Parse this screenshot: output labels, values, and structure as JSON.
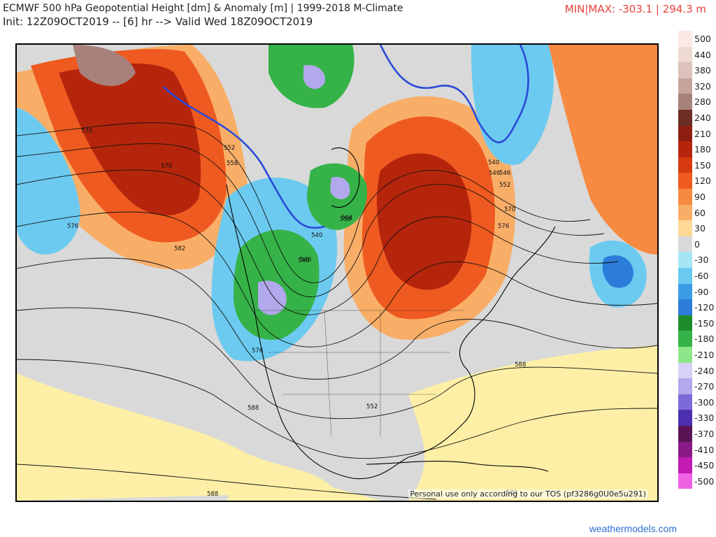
{
  "header": {
    "title": "ECMWF 500 hPa Geopotential Height [dm] & Anomaly [m] | 1999-2018 M-Climate",
    "subtitle": "Init: 12Z09OCT2019 -- [6] hr --> Valid Wed 18Z09OCT2019",
    "minmax": "MIN|MAX: -303.1 | 294.3 m"
  },
  "map": {
    "tos": "Personal use only according to our TOS (pf3286g0U0e5u291)",
    "contour_labels": [
      "570",
      "570",
      "576",
      "552",
      "558",
      "582",
      "552",
      "546",
      "540",
      "546",
      "546",
      "552",
      "570",
      "576",
      "558",
      "564",
      "540",
      "546",
      "576",
      "588",
      "588",
      "588",
      "588"
    ]
  },
  "legend": {
    "levels": [
      {
        "label": "500",
        "color": "#fbe9e6"
      },
      {
        "label": "440",
        "color": "#eed9d3"
      },
      {
        "label": "380",
        "color": "#dcc2ba"
      },
      {
        "label": "320",
        "color": "#c7a49b"
      },
      {
        "label": "280",
        "color": "#a8817a"
      },
      {
        "label": "240",
        "color": "#6b2d24"
      },
      {
        "label": "210",
        "color": "#8e1f10"
      },
      {
        "label": "180",
        "color": "#b5250c"
      },
      {
        "label": "150",
        "color": "#d83a10"
      },
      {
        "label": "120",
        "color": "#ee5a20"
      },
      {
        "label": "90",
        "color": "#f68a42"
      },
      {
        "label": "60",
        "color": "#f9ae68"
      },
      {
        "label": "30",
        "color": "#fdd896"
      },
      {
        "label": "0",
        "color": "#d9d9d9"
      },
      {
        "label": "-30",
        "color": "#a6e6f4"
      },
      {
        "label": "-60",
        "color": "#6ccaf0"
      },
      {
        "label": "-90",
        "color": "#3b9de6"
      },
      {
        "label": "-120",
        "color": "#2c7cd9"
      },
      {
        "label": "-150",
        "color": "#1e8c2c"
      },
      {
        "label": "-180",
        "color": "#36b348"
      },
      {
        "label": "-210",
        "color": "#8ee68a"
      },
      {
        "label": "-240",
        "color": "#d7d2f5"
      },
      {
        "label": "-270",
        "color": "#b2a8ec"
      },
      {
        "label": "-300",
        "color": "#7c6ad9"
      },
      {
        "label": "-330",
        "color": "#4b2fb0"
      },
      {
        "label": "-370",
        "color": "#5a1456"
      },
      {
        "label": "-410",
        "color": "#8c1a86"
      },
      {
        "label": "-450",
        "color": "#c21ab2"
      },
      {
        "label": "-500",
        "color": "#ee62e2"
      }
    ]
  },
  "footer": "weathermodels.com"
}
